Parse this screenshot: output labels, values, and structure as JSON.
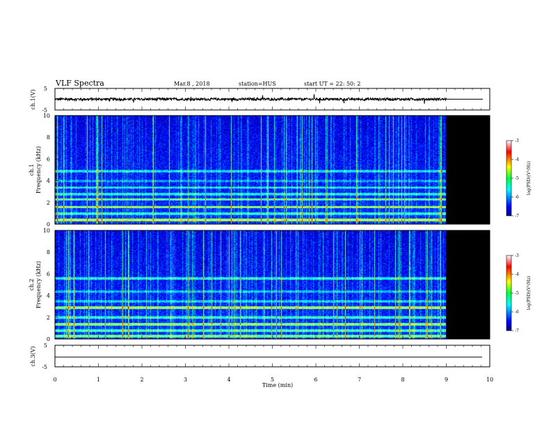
{
  "header": {
    "title": "VLF Spectra",
    "date": "Mar.8 , 2018",
    "station": "station=HUS",
    "start": "start UT = 22: 50: 2"
  },
  "chart_data": [
    {
      "type": "line",
      "name_label": "ch.1(V)",
      "ylabel": "ch.1(V)",
      "ylim": [
        -5,
        5
      ],
      "yticks": [
        "5",
        "-5"
      ],
      "xlim": [
        0,
        10
      ],
      "signal": {
        "description_value_mean": 0,
        "data_end_min": 9.0,
        "flat_after": 0
      }
    },
    {
      "type": "heatmap",
      "ylabel": "ch.1\nFrequency (kHz)",
      "ylabel_lines": [
        "ch.1",
        "Frequency (kHz)"
      ],
      "ylim": [
        0,
        10
      ],
      "yticks": [
        "0",
        "2",
        "4",
        "6",
        "8",
        "10"
      ],
      "xlim": [
        0,
        10
      ],
      "data_end_min": 9.0,
      "colorbar": {
        "label": "log(PSD)(V²/Hz)",
        "range": [
          -7,
          -3
        ],
        "ticks": [
          "-3",
          "-4",
          "-5",
          "-6",
          "-7"
        ]
      },
      "bands_khz": [
        {
          "f": 0.4,
          "level": -4.6
        },
        {
          "f": 1.0,
          "level": -5.2
        },
        {
          "f": 1.6,
          "level": -4.8
        },
        {
          "f": 2.3,
          "level": -5.0
        },
        {
          "f": 2.8,
          "level": -5.3
        },
        {
          "f": 3.4,
          "level": -5.4
        },
        {
          "f": 4.0,
          "level": -5.7
        },
        {
          "f": 4.9,
          "level": -5.4
        }
      ]
    },
    {
      "type": "heatmap",
      "ylabel": "ch.2\nFrequency (kHz)",
      "ylabel_lines": [
        "ch.2",
        "Frequency (kHz)"
      ],
      "ylim": [
        0,
        10
      ],
      "yticks": [
        "0",
        "2",
        "4",
        "6",
        "8",
        "10"
      ],
      "xlim": [
        0,
        10
      ],
      "data_end_min": 9.0,
      "colorbar": {
        "label": "log(PSD)(V²/Hz)",
        "range": [
          -7,
          -3
        ],
        "ticks": [
          "-3",
          "-4",
          "-5",
          "-6",
          "-7"
        ]
      },
      "bands_khz": [
        {
          "f": 0.3,
          "level": -4.9
        },
        {
          "f": 0.8,
          "level": -5.1
        },
        {
          "f": 1.4,
          "level": -4.8
        },
        {
          "f": 2.0,
          "level": -5.2
        },
        {
          "f": 2.9,
          "level": -4.7
        },
        {
          "f": 3.5,
          "level": -5.5
        },
        {
          "f": 4.4,
          "level": -5.6
        },
        {
          "f": 5.6,
          "level": -5.3
        }
      ]
    },
    {
      "type": "line",
      "ylabel": "ch.3(V)",
      "ylim": [
        -5,
        5
      ],
      "yticks": [
        "5",
        "-5"
      ],
      "xlim": [
        0,
        10
      ],
      "xlabel": "Time (min)",
      "xticks": [
        "0",
        "1",
        "2",
        "3",
        "4",
        "5",
        "6",
        "7",
        "8",
        "9",
        "10"
      ],
      "signal": {
        "description_value_mean": 0
      }
    }
  ]
}
